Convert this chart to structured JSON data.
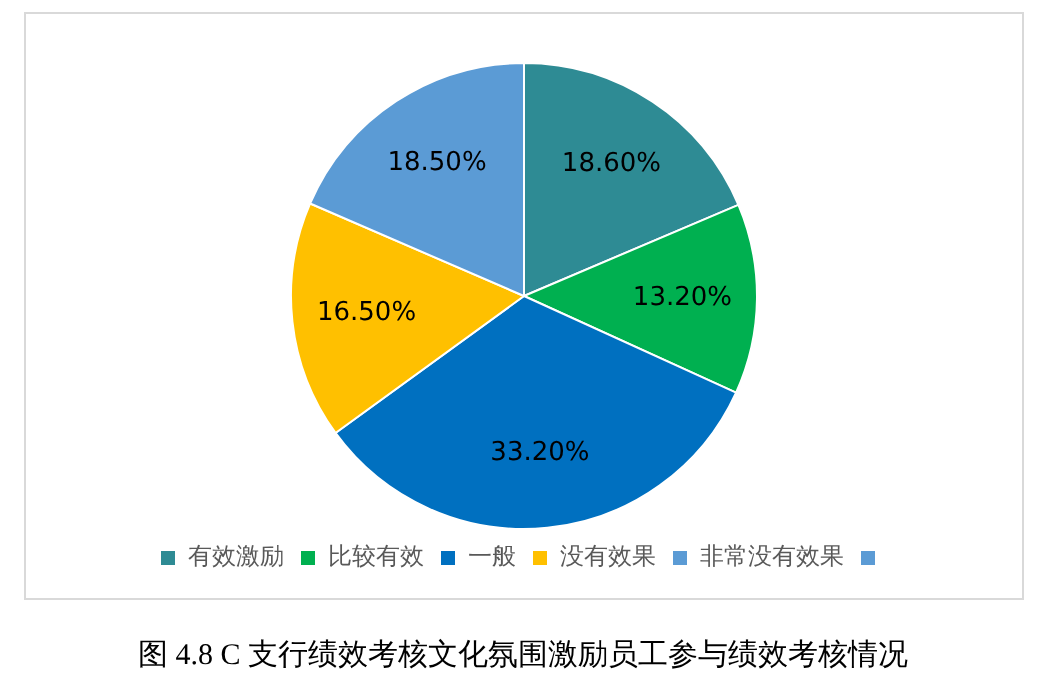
{
  "chart_data": {
    "type": "pie",
    "categories": [
      "有效激励",
      "比较有效",
      "一般",
      "没有效果",
      "非常没有效果",
      null
    ],
    "values": [
      18.6,
      13.2,
      33.2,
      16.5,
      18.5,
      0
    ],
    "colors": [
      "#2e8b94",
      "#00b050",
      "#0070c0",
      "#ffc000",
      "#5b9bd5",
      "#5b9bd5"
    ],
    "value_labels": [
      "18.60%",
      "13.20%",
      "33.20%",
      "16.50%",
      "18.50%",
      null
    ],
    "legend": "bottom",
    "annotations": [
      "图 4.8 C 支行绩效考核文化氛围激励员工参与绩效考核情况"
    ]
  }
}
